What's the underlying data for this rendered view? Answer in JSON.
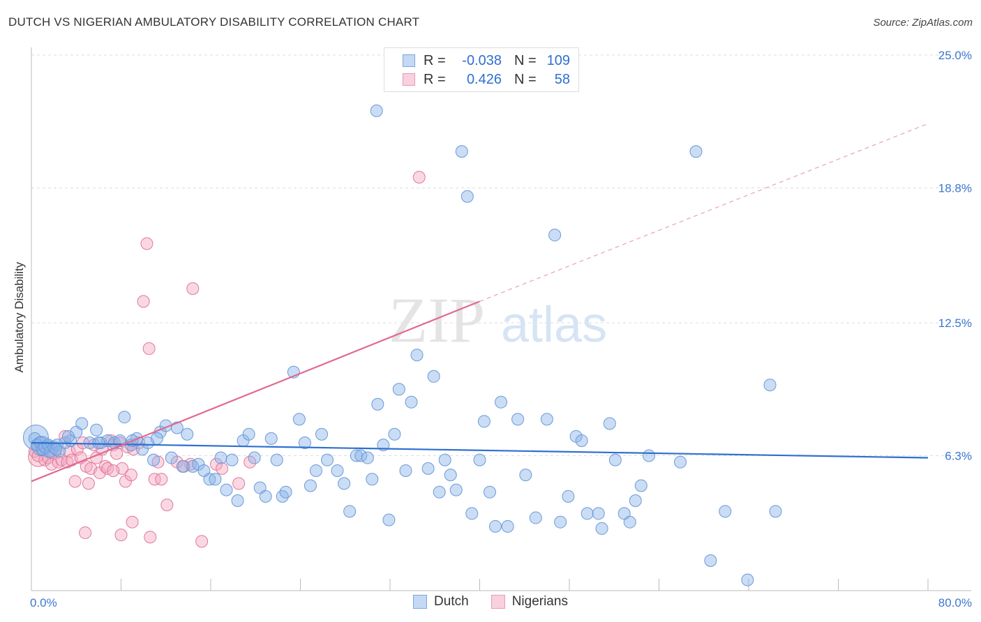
{
  "header": {
    "title": "DUTCH VS NIGERIAN AMBULATORY DISABILITY CORRELATION CHART",
    "source": "Source: ZipAtlas.com"
  },
  "watermark": {
    "zip": "ZIP",
    "atlas": "atlas"
  },
  "legend": {
    "rows": [
      {
        "r_label": "R =",
        "r_value": "-0.038",
        "n_label": "N =",
        "n_value": "109"
      },
      {
        "r_label": "R =",
        "r_value": "0.426",
        "n_label": "N =",
        "n_value": "58"
      }
    ]
  },
  "bottom_legend": {
    "dutch": "Dutch",
    "nigerians": "Nigerians"
  },
  "chart_data": {
    "type": "scatter",
    "title": "DUTCH VS NIGERIAN AMBULATORY DISABILITY CORRELATION CHART",
    "ylabel": "Ambulatory Disability",
    "xlabel": "",
    "xlim": [
      0,
      80
    ],
    "ylim": [
      0,
      25
    ],
    "x_tick_labels": [
      "0.0%",
      "80.0%"
    ],
    "y_tick_labels": [
      "6.3%",
      "12.5%",
      "18.8%",
      "25.0%"
    ],
    "y_ticks": [
      6.3,
      12.5,
      18.8,
      25.0
    ],
    "grid": true,
    "legend_position": "top-center",
    "series": [
      {
        "name": "Dutch",
        "color": "#8ab4e8",
        "stroke": "#6a9ad8",
        "line_color": "#2f6fd0",
        "trend": {
          "x0": 0,
          "y0": 6.9,
          "x1": 80,
          "y1": 6.2
        },
        "points": [
          [
            0.3,
            7.1
          ],
          [
            0.5,
            6.8
          ],
          [
            0.8,
            6.9
          ],
          [
            1.0,
            6.6
          ],
          [
            1.2,
            6.7
          ],
          [
            1.5,
            6.8
          ],
          [
            1.7,
            6.5
          ],
          [
            2.0,
            6.7
          ],
          [
            2.3,
            6.8
          ],
          [
            2.5,
            6.5
          ],
          [
            3.0,
            6.9
          ],
          [
            3.5,
            7.0
          ],
          [
            4.0,
            7.4
          ],
          [
            4.5,
            7.8
          ],
          [
            5.2,
            6.9
          ],
          [
            5.8,
            7.5
          ],
          [
            6.2,
            6.9
          ],
          [
            6.8,
            7.0
          ],
          [
            7.4,
            6.9
          ],
          [
            7.9,
            7.0
          ],
          [
            8.3,
            8.1
          ],
          [
            8.9,
            6.8
          ],
          [
            9.4,
            7.1
          ],
          [
            9.9,
            6.6
          ],
          [
            10.4,
            6.9
          ],
          [
            10.9,
            6.1
          ],
          [
            11.5,
            7.4
          ],
          [
            12.0,
            7.7
          ],
          [
            12.5,
            6.2
          ],
          [
            13.0,
            7.6
          ],
          [
            13.5,
            5.8
          ],
          [
            13.9,
            7.3
          ],
          [
            14.4,
            5.8
          ],
          [
            14.9,
            5.9
          ],
          [
            15.4,
            5.6
          ],
          [
            15.9,
            5.2
          ],
          [
            16.4,
            5.2
          ],
          [
            16.9,
            6.2
          ],
          [
            17.4,
            4.7
          ],
          [
            17.9,
            6.1
          ],
          [
            18.4,
            4.2
          ],
          [
            18.9,
            7.0
          ],
          [
            19.4,
            7.3
          ],
          [
            19.9,
            6.2
          ],
          [
            20.4,
            4.8
          ],
          [
            20.9,
            4.4
          ],
          [
            21.4,
            7.1
          ],
          [
            21.9,
            6.1
          ],
          [
            22.4,
            4.4
          ],
          [
            22.7,
            4.6
          ],
          [
            23.4,
            10.2
          ],
          [
            23.9,
            8.0
          ],
          [
            24.4,
            6.9
          ],
          [
            24.9,
            4.9
          ],
          [
            25.4,
            5.6
          ],
          [
            25.9,
            7.3
          ],
          [
            26.4,
            6.1
          ],
          [
            27.3,
            5.6
          ],
          [
            27.9,
            5.0
          ],
          [
            28.4,
            3.7
          ],
          [
            29.0,
            6.3
          ],
          [
            29.4,
            6.3
          ],
          [
            30.0,
            6.2
          ],
          [
            30.4,
            5.2
          ],
          [
            30.9,
            8.7
          ],
          [
            31.4,
            6.8
          ],
          [
            31.9,
            3.3
          ],
          [
            32.4,
            7.3
          ],
          [
            32.8,
            9.4
          ],
          [
            33.4,
            5.6
          ],
          [
            33.9,
            8.8
          ],
          [
            34.4,
            11.0
          ],
          [
            35.4,
            5.7
          ],
          [
            35.9,
            10.0
          ],
          [
            36.4,
            4.6
          ],
          [
            36.9,
            6.1
          ],
          [
            37.4,
            5.4
          ],
          [
            37.9,
            4.7
          ],
          [
            38.4,
            20.5
          ],
          [
            38.9,
            18.4
          ],
          [
            39.3,
            3.6
          ],
          [
            40.0,
            6.1
          ],
          [
            40.4,
            7.9
          ],
          [
            40.9,
            4.6
          ],
          [
            41.4,
            3.0
          ],
          [
            41.9,
            8.8
          ],
          [
            42.5,
            3.0
          ],
          [
            43.4,
            8.0
          ],
          [
            44.1,
            5.4
          ],
          [
            45.0,
            3.4
          ],
          [
            46.0,
            8.0
          ],
          [
            46.7,
            16.6
          ],
          [
            47.2,
            3.2
          ],
          [
            47.9,
            4.4
          ],
          [
            48.6,
            7.2
          ],
          [
            49.1,
            7.0
          ],
          [
            49.6,
            3.6
          ],
          [
            50.6,
            3.6
          ],
          [
            50.9,
            2.9
          ],
          [
            51.6,
            7.8
          ],
          [
            52.1,
            6.1
          ],
          [
            52.9,
            3.6
          ],
          [
            53.4,
            3.2
          ],
          [
            53.9,
            4.2
          ],
          [
            54.4,
            4.9
          ],
          [
            55.1,
            6.3
          ],
          [
            57.9,
            6.0
          ],
          [
            59.3,
            20.5
          ],
          [
            60.6,
            1.4
          ],
          [
            61.9,
            3.7
          ],
          [
            63.9,
            0.5
          ],
          [
            65.9,
            9.6
          ],
          [
            66.4,
            3.7
          ],
          [
            30.8,
            22.4
          ],
          [
            2.2,
            6.6
          ],
          [
            3.3,
            7.2
          ],
          [
            6.0,
            6.9
          ],
          [
            9.0,
            7.0
          ],
          [
            11.2,
            7.1
          ]
        ],
        "big_points": [
          [
            0.4,
            7.15,
            18
          ],
          [
            0.9,
            6.75,
            14
          ],
          [
            1.6,
            6.6,
            12
          ]
        ]
      },
      {
        "name": "Nigerians",
        "color": "#f4a8c0",
        "stroke": "#e07898",
        "line_color": "#e06a90",
        "trend": {
          "x0": 0,
          "y0": 5.1,
          "x1": 40,
          "y1": 13.5,
          "dash_x1": 80,
          "dash_y1": 21.8
        },
        "points": [
          [
            0.3,
            6.5
          ],
          [
            0.6,
            6.3
          ],
          [
            0.9,
            6.6
          ],
          [
            1.2,
            6.1
          ],
          [
            1.5,
            6.2
          ],
          [
            1.8,
            5.9
          ],
          [
            2.1,
            6.4
          ],
          [
            2.4,
            6.0
          ],
          [
            2.7,
            6.1
          ],
          [
            3.0,
            7.2
          ],
          [
            3.2,
            6.0
          ],
          [
            3.4,
            6.5
          ],
          [
            3.6,
            6.1
          ],
          [
            3.9,
            5.1
          ],
          [
            4.1,
            6.6
          ],
          [
            4.4,
            6.2
          ],
          [
            4.6,
            6.9
          ],
          [
            4.9,
            5.8
          ],
          [
            5.1,
            5.0
          ],
          [
            5.3,
            5.7
          ],
          [
            5.6,
            6.8
          ],
          [
            5.8,
            6.2
          ],
          [
            6.1,
            5.5
          ],
          [
            6.3,
            6.6
          ],
          [
            6.6,
            5.8
          ],
          [
            6.8,
            5.7
          ],
          [
            7.1,
            7.0
          ],
          [
            7.3,
            6.8
          ],
          [
            7.6,
            6.4
          ],
          [
            7.9,
            6.9
          ],
          [
            8.1,
            5.7
          ],
          [
            8.4,
            5.1
          ],
          [
            8.6,
            6.7
          ],
          [
            8.9,
            5.4
          ],
          [
            9.1,
            6.6
          ],
          [
            9.6,
            6.9
          ],
          [
            10.3,
            16.2
          ],
          [
            10.0,
            13.5
          ],
          [
            10.5,
            11.3
          ],
          [
            11.0,
            5.2
          ],
          [
            11.3,
            6.0
          ],
          [
            11.6,
            5.2
          ],
          [
            12.1,
            4.0
          ],
          [
            13.0,
            6.0
          ],
          [
            14.2,
            5.9
          ],
          [
            14.4,
            14.1
          ],
          [
            15.2,
            2.3
          ],
          [
            16.5,
            5.9
          ],
          [
            18.5,
            5.0
          ],
          [
            19.5,
            6.0
          ],
          [
            4.8,
            2.7
          ],
          [
            7.3,
            5.6
          ],
          [
            8.0,
            2.6
          ],
          [
            9.0,
            3.2
          ],
          [
            10.6,
            2.5
          ],
          [
            13.6,
            5.8
          ],
          [
            17.0,
            5.7
          ],
          [
            34.6,
            19.3
          ]
        ],
        "big_points": [
          [
            0.6,
            6.25,
            14
          ]
        ]
      }
    ]
  }
}
